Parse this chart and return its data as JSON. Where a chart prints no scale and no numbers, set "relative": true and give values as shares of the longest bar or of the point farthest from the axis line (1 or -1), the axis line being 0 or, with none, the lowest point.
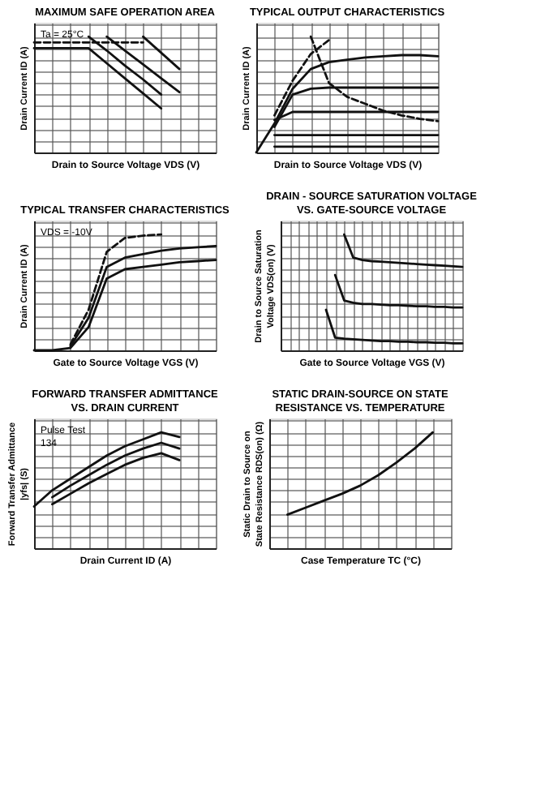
{
  "chart_data": [
    {
      "type": "line",
      "title": "MAXIMUM SAFE OPERATION AREA",
      "xlabel": "Drain to Source Voltage VDS (V)",
      "ylabel": "Drain Current ID (A)",
      "relative": true,
      "grid": true,
      "annotations": [
        "Ta = 25°C"
      ],
      "categories": [
        null,
        null,
        null,
        null,
        null,
        null,
        null,
        null,
        null,
        null,
        null
      ],
      "series": [
        {
          "color": "#111111",
          "values": [
            0.9,
            0.9,
            0.9,
            0.9,
            0.77,
            0.64,
            0.51,
            0.38,
            null,
            null,
            null
          ]
        },
        {
          "color": "#111111",
          "values": [
            null,
            null,
            null,
            1.0,
            0.88,
            0.75,
            0.63,
            0.5,
            null,
            null,
            null
          ]
        },
        {
          "color": "#111111",
          "values": [
            null,
            null,
            null,
            null,
            1.0,
            0.88,
            0.76,
            0.64,
            0.52,
            null,
            null
          ]
        },
        {
          "color": "#111111",
          "values": [
            null,
            null,
            null,
            null,
            null,
            null,
            1.0,
            0.86,
            0.72,
            null,
            null
          ]
        },
        {
          "color": "#111111",
          "line_style": "dashed",
          "values": [
            0.95,
            0.95,
            0.95,
            0.95,
            0.95,
            0.95,
            0.95,
            null,
            null,
            null,
            null
          ]
        }
      ]
    },
    {
      "type": "line",
      "title": "TYPICAL OUTPUT CHARACTERISTICS",
      "xlabel": "Drain to Source Voltage VDS (V)",
      "ylabel": "Drain Current ID (A)",
      "relative": true,
      "grid": true,
      "categories": [
        null,
        null,
        null,
        null,
        null,
        null,
        null,
        null,
        null,
        null,
        null
      ],
      "series": [
        {
          "color": "#111111",
          "values": [
            null,
            0.05,
            0.05,
            0.05,
            0.05,
            0.05,
            0.05,
            0.05,
            0.05,
            0.05,
            0.05
          ]
        },
        {
          "color": "#111111",
          "values": [
            null,
            0.15,
            0.15,
            0.15,
            0.15,
            0.15,
            0.15,
            0.15,
            0.15,
            0.15,
            0.15
          ]
        },
        {
          "color": "#111111",
          "values": [
            null,
            0.28,
            0.35,
            0.35,
            0.35,
            0.35,
            0.35,
            0.35,
            0.35,
            0.35,
            0.35
          ]
        },
        {
          "color": "#111111",
          "values": [
            null,
            0.22,
            0.5,
            0.55,
            0.56,
            0.56,
            0.56,
            0.56,
            0.56,
            0.56,
            0.56
          ]
        },
        {
          "color": "#111111",
          "values": [
            0,
            0.25,
            0.55,
            0.72,
            0.78,
            0.8,
            0.82,
            0.83,
            0.84,
            0.84,
            0.83
          ]
        },
        {
          "color": "#111111",
          "line_style": "dashed",
          "values": [
            null,
            0.32,
            0.62,
            0.85,
            0.97,
            null,
            null,
            null,
            null,
            null,
            null
          ]
        },
        {
          "color": "#111111",
          "line_style": "dashed",
          "values": [
            null,
            null,
            null,
            1.0,
            0.6,
            0.48,
            0.42,
            0.36,
            0.32,
            0.29,
            0.27
          ]
        }
      ]
    },
    {
      "type": "line",
      "title": "TYPICAL TRANSFER CHARACTERISTICS",
      "xlabel": "Gate to Source Voltage VGS (V)",
      "ylabel": "Drain Current ID (A)",
      "relative": true,
      "grid": true,
      "annotations": [
        "VDS = -10V"
      ],
      "categories": [
        null,
        null,
        null,
        null,
        null,
        null,
        null,
        null,
        null,
        null,
        null
      ],
      "series": [
        {
          "color": "#111111",
          "line_style": "dashed",
          "values": [
            null,
            null,
            0.05,
            0.35,
            0.85,
            0.97,
            0.99,
            1.0,
            null,
            null,
            null
          ]
        },
        {
          "color": "#111111",
          "values": [
            null,
            null,
            0.035,
            0.28,
            0.72,
            0.8,
            0.83,
            0.86,
            0.88,
            0.89,
            0.9
          ]
        },
        {
          "color": "#111111",
          "values": [
            0,
            0,
            0.02,
            0.2,
            0.62,
            0.7,
            0.72,
            0.74,
            0.76,
            0.77,
            0.78
          ]
        }
      ]
    },
    {
      "type": "line",
      "title": "DRAIN - SOURCE SATURATION VOLTAGE\nVS. GATE-SOURCE VOLTAGE",
      "xlabel": "Gate to Source Voltage VGS (V)",
      "ylabel": "Drain to Source Saturation Voltage VDS(on) (V)",
      "relative": true,
      "grid": true,
      "categories": [
        null,
        null,
        null,
        null,
        null,
        null,
        null,
        null,
        null,
        null,
        null,
        null,
        null,
        null,
        null,
        null,
        null,
        null,
        null,
        null,
        null
      ],
      "series": [
        {
          "color": "#111111",
          "values": [
            null,
            null,
            null,
            null,
            null,
            null,
            null,
            1.0,
            0.8,
            0.78,
            0.77,
            0.765,
            0.76,
            0.755,
            0.75,
            0.745,
            0.74,
            0.735,
            0.73,
            0.725,
            0.72
          ]
        },
        {
          "color": "#111111",
          "values": [
            null,
            null,
            null,
            null,
            null,
            null,
            0.65,
            0.43,
            0.41,
            0.4,
            0.4,
            0.395,
            0.39,
            0.39,
            0.385,
            0.38,
            0.38,
            0.375,
            0.375,
            0.37,
            0.37
          ]
        },
        {
          "color": "#111111",
          "values": [
            null,
            null,
            null,
            null,
            null,
            0.35,
            0.11,
            0.1,
            0.095,
            0.09,
            0.085,
            0.08,
            0.08,
            0.075,
            0.075,
            0.07,
            0.07,
            0.065,
            0.065,
            0.06,
            0.06
          ]
        }
      ]
    },
    {
      "type": "line",
      "title": "FORWARD TRANSFER ADMITTANCE\nVS. DRAIN CURRENT",
      "xlabel": "Drain Current ID (A)",
      "ylabel": "Forward Transfer Admittance |yfs| (S)",
      "relative": true,
      "grid": true,
      "annotations": [
        "Pulse Test",
        "134"
      ],
      "categories": [
        null,
        null,
        null,
        null,
        null,
        null,
        null,
        null,
        null,
        null,
        null
      ],
      "series": [
        {
          "color": "#111111",
          "values": [
            0.36,
            0.5,
            0.6,
            0.7,
            0.8,
            0.88,
            0.94,
            1.0,
            0.96,
            null,
            null
          ]
        },
        {
          "color": "#111111",
          "values": [
            null,
            0.44,
            0.54,
            0.63,
            0.72,
            0.8,
            0.86,
            0.91,
            0.86,
            null,
            null
          ]
        },
        {
          "color": "#111111",
          "values": [
            null,
            0.38,
            0.47,
            0.56,
            0.64,
            0.72,
            0.78,
            0.82,
            0.76,
            null,
            null
          ]
        }
      ]
    },
    {
      "type": "line",
      "title": "STATIC DRAIN-SOURCE ON STATE\nRESISTANCE VS. TEMPERATURE",
      "xlabel": "Case Temperature TC (°C)",
      "ylabel": "Static Drain to Source on State Resistance RDS(on) (Ω)",
      "relative": true,
      "grid": true,
      "categories": [
        null,
        null,
        null,
        null,
        null,
        null,
        null,
        null,
        null,
        null,
        null
      ],
      "series": [
        {
          "color": "#111111",
          "values": [
            null,
            0.29,
            0.35,
            0.41,
            0.47,
            0.54,
            0.63,
            0.74,
            0.86,
            1.0,
            null
          ]
        }
      ]
    }
  ]
}
